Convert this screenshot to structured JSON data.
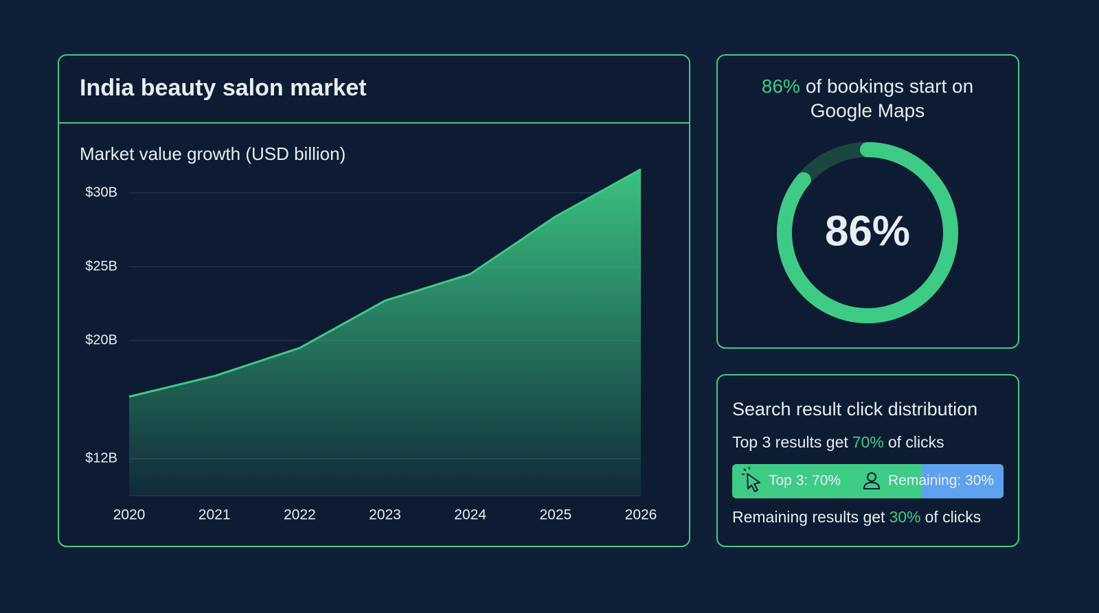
{
  "chart_data": [
    {
      "type": "area",
      "title": "India beauty salon market",
      "subtitle": "Market value growth (USD billion)",
      "categories": [
        "2020",
        "2021",
        "2022",
        "2023",
        "2024",
        "2025",
        "2026"
      ],
      "values": [
        16.2,
        17.6,
        19.5,
        22.7,
        24.5,
        28.4,
        31.6
      ],
      "color": "#3ecb86",
      "ylim": [
        9.5,
        32
      ],
      "yticks": [
        {
          "value": 12,
          "label": "$12B"
        },
        {
          "value": 20,
          "label": "$20B"
        },
        {
          "value": 25,
          "label": "$25B"
        },
        {
          "value": 30,
          "label": "$30B"
        }
      ],
      "grid": true
    },
    {
      "type": "donut",
      "title_lines": [
        "of bookings start on",
        "Google Maps"
      ],
      "values": [
        86
      ],
      "value_labels": [
        "86%"
      ],
      "ylim": [
        0,
        100
      ],
      "color": "#3ecb86",
      "track_color": "#1c4640"
    },
    {
      "type": "stacked_bar",
      "title": "Search result click distribution",
      "xlim": [
        0,
        100
      ],
      "series": [
        {
          "name": "Top 3",
          "color": "#3ecb86",
          "values": [
            70
          ],
          "value_labels": [
            "Top 3: 70%"
          ]
        },
        {
          "name": "Remaining",
          "color": "#5ea2ef",
          "values": [
            30
          ],
          "value_labels": [
            "Remaining: 30%"
          ]
        }
      ],
      "notes": [
        {
          "before": "Top 3 results get",
          "highlight": "70%",
          "after": "of clicks"
        },
        {
          "before": "Remaining results get",
          "highlight": "30%",
          "after": "of clicks"
        }
      ]
    }
  ]
}
